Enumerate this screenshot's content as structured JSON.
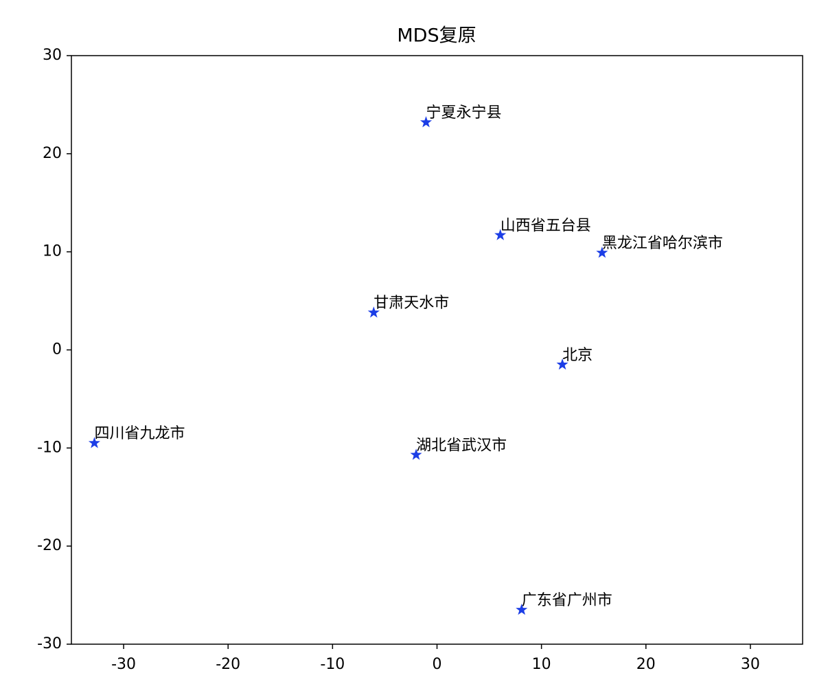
{
  "chart_data": {
    "type": "scatter",
    "title": "MDS复原",
    "series": [
      {
        "color": "#1c3ee6",
        "x": [
          -1.05,
          6.06,
          15.8,
          -6.06,
          12.0,
          -32.8,
          -2.0,
          8.1
        ],
        "values": [
          23.2,
          11.7,
          9.9,
          3.8,
          -1.5,
          -9.5,
          -10.7,
          -26.5
        ],
        "labels": [
          "宁夏永宁县",
          "山西省五台县",
          "黑龙江省哈尔滨市",
          "甘肃天水市",
          "北京",
          "四川省九龙市",
          "湖北省武汉市",
          "广东省广州市"
        ]
      }
    ],
    "xlim": [
      -35,
      35
    ],
    "xticks": [
      -30,
      -20,
      -10,
      0,
      10,
      20,
      30
    ],
    "ylim": [
      -30,
      30
    ],
    "yticks": [
      -30,
      -20,
      -10,
      0,
      10,
      20,
      30
    ],
    "grid": false
  }
}
